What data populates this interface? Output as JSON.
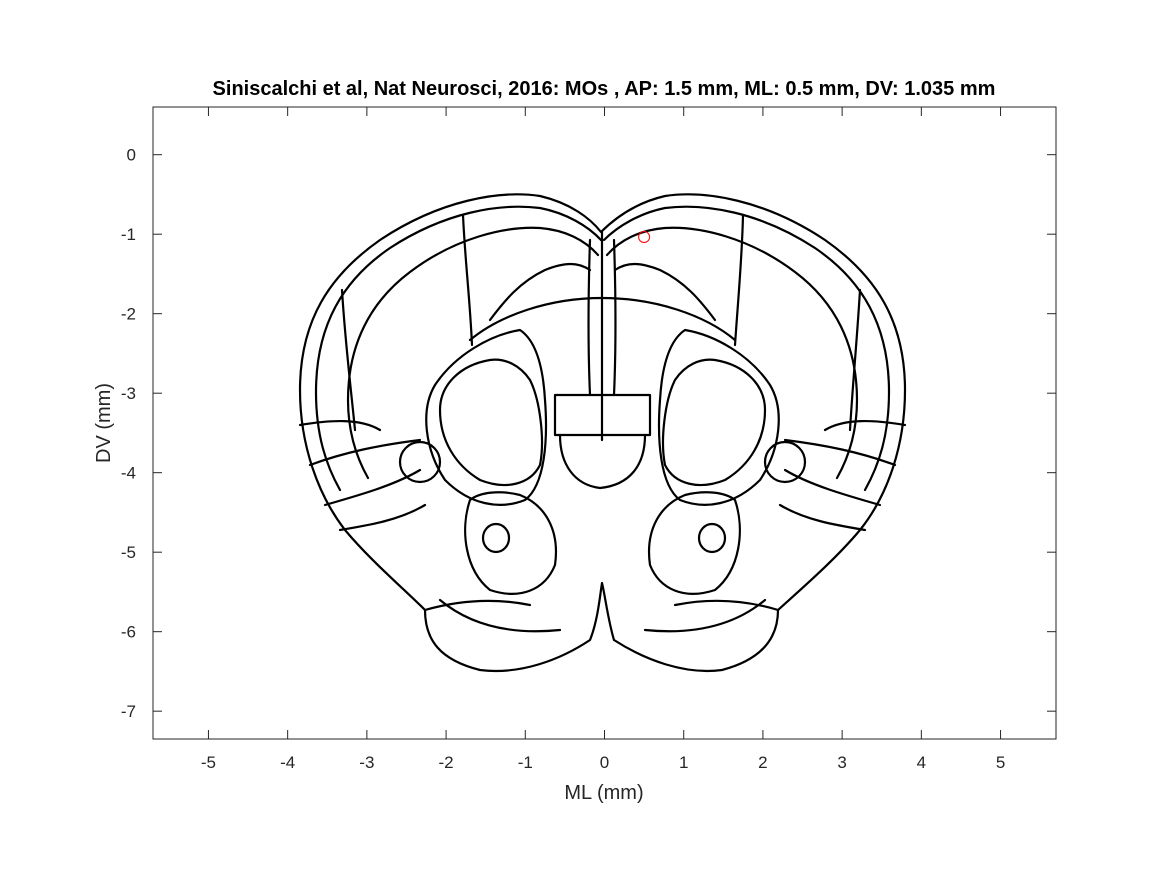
{
  "chart_data": {
    "type": "scatter",
    "title": "Siniscalchi et al, Nat Neurosci, 2016: MOs , AP: 1.5 mm, ML: 0.5 mm, DV: 1.035 mm",
    "xlabel": "ML (mm)",
    "ylabel": "DV (mm)",
    "xlim": [
      -5.7,
      5.7
    ],
    "ylim": [
      -7.35,
      0.6
    ],
    "x_ticks": [
      -5,
      -4,
      -3,
      -2,
      -1,
      0,
      1,
      2,
      3,
      4,
      5
    ],
    "y_ticks": [
      0,
      -1,
      -2,
      -3,
      -4,
      -5,
      -6,
      -7
    ],
    "x_tick_labels": [
      "-5",
      "-4",
      "-3",
      "-2",
      "-1",
      "0",
      "1",
      "2",
      "3",
      "4",
      "5"
    ],
    "y_tick_labels": [
      "0",
      "-1",
      "-2",
      "-3",
      "-4",
      "-5",
      "-6",
      "-7"
    ],
    "grid": false,
    "background_image": "coronal-brain-atlas-outline",
    "points": [
      {
        "x": 0.5,
        "y": -1.035,
        "marker": "circle",
        "color": "#ff0000"
      }
    ]
  }
}
